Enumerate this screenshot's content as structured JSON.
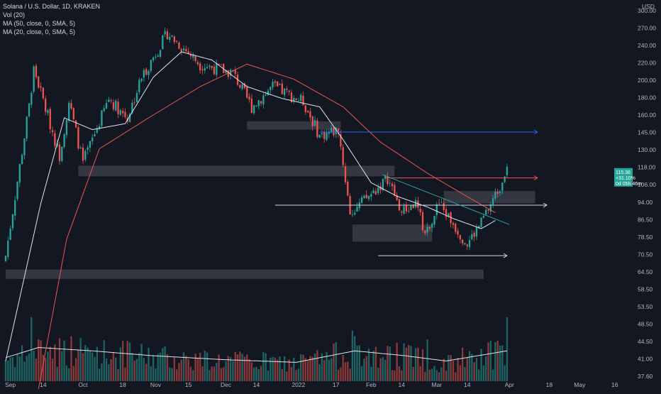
{
  "legend": {
    "title": "Solana / U.S. Dollar, 1D, KRAKEN",
    "vol": "Vol (20)",
    "ma50": "MA (50, close, 0, SMA, 5)",
    "ma20": "MA (20, close, 0, SMA, 5)"
  },
  "price_axis": {
    "currency": "USD",
    "ticks": [
      "300.00",
      "270.00",
      "240.00",
      "220.00",
      "200.00",
      "180.00",
      "160.00",
      "145.00",
      "130.00",
      "118.00",
      "106.00",
      "94.00",
      "86.50",
      "78.50",
      "70.50",
      "64.50",
      "58.50",
      "53.50",
      "48.50",
      "44.50",
      "41.00",
      "37.60"
    ],
    "last_price_lines": [
      "115.38",
      "+31.10%",
      "0d 05h 46m"
    ]
  },
  "time_axis": {
    "ticks": [
      "Sep",
      "14",
      "Oct",
      "18",
      "Nov",
      "15",
      "Dec",
      "14",
      "2022",
      "17",
      "Feb",
      "14",
      "Mar",
      "14",
      "Apr",
      "18",
      "May",
      "16"
    ]
  },
  "colors": {
    "background": "#131722",
    "up": "#26a69a",
    "down": "#ef5350",
    "ma20": "#e0e3eb",
    "ma50": "#ef5350",
    "zone": "#5d606b",
    "grid": "#1e222d",
    "ray_white": "#d1d4dc",
    "ray_blue": "#2962ff",
    "ray_red": "#ef5350",
    "ray_teal": "#26a69a"
  },
  "chart_data": {
    "type": "candlestick",
    "symbol": "SOLUSD",
    "interval": "1D",
    "exchange": "KRAKEN",
    "y_scale": "log",
    "ylim": [
      37.6,
      300
    ],
    "x_range": [
      "2021-08-29",
      "2022-05-23"
    ],
    "grid": false,
    "last_close": 115.38,
    "change_percent": "+31.10%",
    "countdown": "0d 05h 46m",
    "key_points": [
      {
        "date": "2021-08-29",
        "price": 75
      },
      {
        "date": "2021-09-08",
        "price": 170
      },
      {
        "date": "2021-09-10",
        "price": 210
      },
      {
        "date": "2021-09-21",
        "price": 130
      },
      {
        "date": "2021-09-25",
        "price": 175
      },
      {
        "date": "2021-10-01",
        "price": 125
      },
      {
        "date": "2021-10-12",
        "price": 178
      },
      {
        "date": "2021-10-20",
        "price": 160
      },
      {
        "date": "2021-10-26",
        "price": 200
      },
      {
        "date": "2021-11-06",
        "price": 255
      },
      {
        "date": "2021-11-20",
        "price": 215
      },
      {
        "date": "2021-12-04",
        "price": 205
      },
      {
        "date": "2021-12-12",
        "price": 170
      },
      {
        "date": "2021-12-21",
        "price": 190
      },
      {
        "date": "2022-01-03",
        "price": 175
      },
      {
        "date": "2022-01-10",
        "price": 145
      },
      {
        "date": "2022-01-18",
        "price": 150
      },
      {
        "date": "2022-01-23",
        "price": 95
      },
      {
        "date": "2022-02-01",
        "price": 105
      },
      {
        "date": "2022-02-08",
        "price": 115
      },
      {
        "date": "2022-02-14",
        "price": 95
      },
      {
        "date": "2022-02-20",
        "price": 100
      },
      {
        "date": "2022-02-24",
        "price": 85
      },
      {
        "date": "2022-03-02",
        "price": 100
      },
      {
        "date": "2022-03-14",
        "price": 80
      },
      {
        "date": "2022-03-20",
        "price": 90
      },
      {
        "date": "2022-03-28",
        "price": 110
      },
      {
        "date": "2022-03-31",
        "price": 125
      }
    ],
    "ma20_points": [
      {
        "date": "2021-08-29",
        "price": 42
      },
      {
        "date": "2021-09-13",
        "price": 100
      },
      {
        "date": "2021-09-23",
        "price": 160
      },
      {
        "date": "2021-10-05",
        "price": 150
      },
      {
        "date": "2021-10-19",
        "price": 155
      },
      {
        "date": "2021-10-31",
        "price": 200
      },
      {
        "date": "2021-11-12",
        "price": 230
      },
      {
        "date": "2021-11-25",
        "price": 220
      },
      {
        "date": "2021-12-10",
        "price": 190
      },
      {
        "date": "2021-12-25",
        "price": 178
      },
      {
        "date": "2022-01-10",
        "price": 170
      },
      {
        "date": "2022-01-20",
        "price": 142
      },
      {
        "date": "2022-02-01",
        "price": 112
      },
      {
        "date": "2022-02-12",
        "price": 104
      },
      {
        "date": "2022-02-25",
        "price": 98
      },
      {
        "date": "2022-03-08",
        "price": 92
      },
      {
        "date": "2022-03-20",
        "price": 87
      },
      {
        "date": "2022-03-26",
        "price": 91
      }
    ],
    "ma50_points": [
      {
        "date": "2021-09-12",
        "price": 36
      },
      {
        "date": "2021-09-24",
        "price": 82
      },
      {
        "date": "2021-10-08",
        "price": 135
      },
      {
        "date": "2021-10-29",
        "price": 160
      },
      {
        "date": "2021-11-20",
        "price": 190
      },
      {
        "date": "2021-12-10",
        "price": 215
      },
      {
        "date": "2021-12-30",
        "price": 198
      },
      {
        "date": "2022-01-20",
        "price": 170
      },
      {
        "date": "2022-02-05",
        "price": 140
      },
      {
        "date": "2022-02-25",
        "price": 118
      },
      {
        "date": "2022-03-15",
        "price": 103
      },
      {
        "date": "2022-03-26",
        "price": 95
      }
    ],
    "volume_ma_points": [
      {
        "date": "2021-08-29",
        "vol": 0.35
      },
      {
        "date": "2021-09-12",
        "vol": 0.5
      },
      {
        "date": "2021-10-05",
        "vol": 0.45
      },
      {
        "date": "2021-10-30",
        "vol": 0.38
      },
      {
        "date": "2021-11-30",
        "vol": 0.32
      },
      {
        "date": "2021-12-31",
        "vol": 0.28
      },
      {
        "date": "2022-01-25",
        "vol": 0.45
      },
      {
        "date": "2022-02-15",
        "vol": 0.38
      },
      {
        "date": "2022-03-05",
        "vol": 0.3
      },
      {
        "date": "2022-03-31",
        "vol": 0.45
      }
    ],
    "volume_spikes": [
      {
        "date": "2021-09-09",
        "vol": 0.95
      },
      {
        "date": "2022-01-24",
        "vol": 0.75
      },
      {
        "date": "2022-02-25",
        "vol": 0.62
      },
      {
        "date": "2022-03-31",
        "vol": 0.95
      }
    ],
    "zones": [
      {
        "from": "2021-09-29",
        "to": "2022-02-11",
        "low": 116,
        "high": 123
      },
      {
        "from": "2021-12-10",
        "to": "2022-01-19",
        "low": 150,
        "high": 157
      },
      {
        "from": "2022-03-04",
        "to": "2022-04-12",
        "low": 100,
        "high": 107
      },
      {
        "from": "2022-01-24",
        "to": "2022-02-27",
        "low": 81,
        "high": 89
      },
      {
        "from": "2021-08-29",
        "to": "2022-03-21",
        "low": 66,
        "high": 69.5
      }
    ],
    "rays": [
      {
        "from": "2022-01-10",
        "to": "2022-04-13",
        "price": 148,
        "color": "ray_blue"
      },
      {
        "from": "2021-12-22",
        "to": "2022-04-17",
        "price": 99,
        "color": "ray_white"
      },
      {
        "from": "2022-02-07",
        "to": "2022-04-13",
        "price": 115,
        "color": "ray_red"
      },
      {
        "from": "2022-02-04",
        "to": "2022-03-31",
        "price": 75,
        "color": "ray_white"
      }
    ],
    "trendlines": [
      {
        "from_date": "2022-02-06",
        "from_price": 117,
        "to_date": "2022-04-01",
        "to_price": 89,
        "color": "ray_teal"
      }
    ]
  }
}
